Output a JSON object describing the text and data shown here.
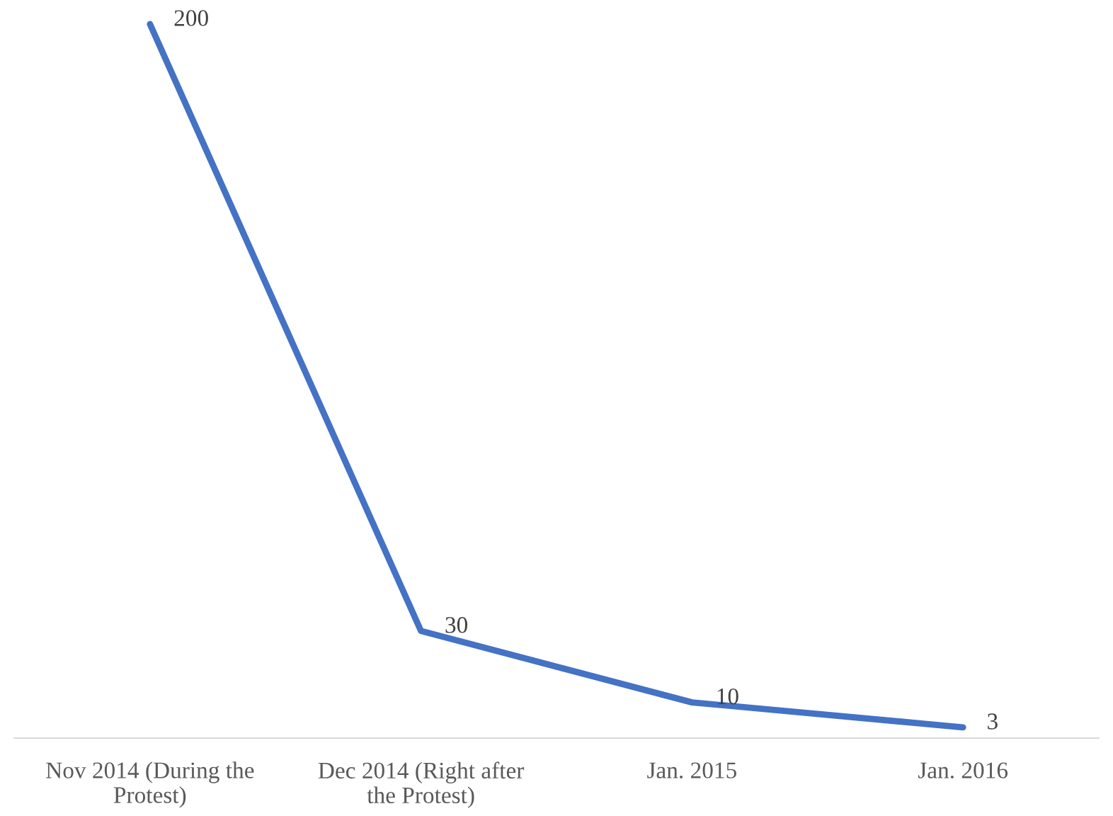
{
  "chart_data": {
    "type": "line",
    "categories": [
      "Nov 2014 (During the Protest)",
      "Dec 2014 (Right after the Protest)",
      "Jan. 2015",
      "Jan. 2016"
    ],
    "series": [
      {
        "color": "#4472c4",
        "values": [
          200,
          30,
          10,
          3
        ]
      }
    ],
    "data_labels": true,
    "grid": false,
    "legend": false,
    "marker": "none",
    "line_style": "solid"
  }
}
